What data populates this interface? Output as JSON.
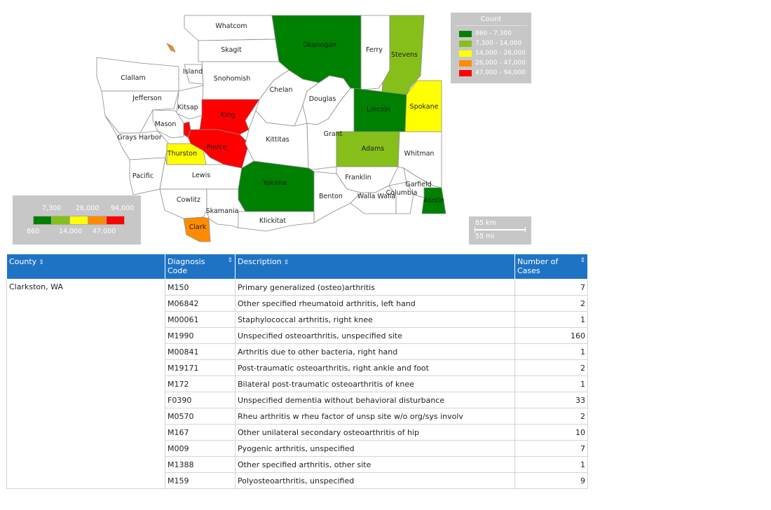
{
  "map": {
    "counties": [
      {
        "name": "Whatcom",
        "level": 0
      },
      {
        "name": "Skagit",
        "level": 0
      },
      {
        "name": "Okanogan",
        "level": 1
      },
      {
        "name": "Ferry",
        "level": 0
      },
      {
        "name": "Stevens",
        "level": 2
      },
      {
        "name": "Clallam",
        "level": 0
      },
      {
        "name": "Island",
        "level": 0
      },
      {
        "name": "Snohomish",
        "level": 0
      },
      {
        "name": "Chelan",
        "level": 0
      },
      {
        "name": "Douglas",
        "level": 0
      },
      {
        "name": "Lincoln",
        "level": 1
      },
      {
        "name": "Spokane",
        "level": 3
      },
      {
        "name": "Jefferson",
        "level": 0
      },
      {
        "name": "Kitsap",
        "level": 0
      },
      {
        "name": "King",
        "level": 5
      },
      {
        "name": "Mason",
        "level": 0
      },
      {
        "name": "Grays Harbor",
        "level": 0
      },
      {
        "name": "Pierce",
        "level": 5
      },
      {
        "name": "Thurston",
        "level": 3
      },
      {
        "name": "Kittitas",
        "level": 0
      },
      {
        "name": "Grant",
        "level": 0
      },
      {
        "name": "Adams",
        "level": 2
      },
      {
        "name": "Whitman",
        "level": 0
      },
      {
        "name": "Pacific",
        "level": 0
      },
      {
        "name": "Lewis",
        "level": 0
      },
      {
        "name": "Yakima",
        "level": 1
      },
      {
        "name": "Franklin",
        "level": 0
      },
      {
        "name": "Garfield",
        "level": 0
      },
      {
        "name": "Benton",
        "level": 0
      },
      {
        "name": "Walla Walla",
        "level": 0
      },
      {
        "name": "Columbia",
        "level": 0
      },
      {
        "name": "Asotin",
        "level": 1
      },
      {
        "name": "Cowlitz",
        "level": 0
      },
      {
        "name": "Skamania",
        "level": 0
      },
      {
        "name": "Klickitat",
        "level": 0
      },
      {
        "name": "Clark",
        "level": 4
      },
      {
        "name": "San Juan",
        "level": 4
      }
    ],
    "colors": [
      "#ffffff",
      "#008000",
      "#86bf19",
      "#ffff00",
      "#ff8c00",
      "#ff0000"
    ]
  },
  "legend": {
    "title": "Count",
    "items": [
      {
        "label": "860 - 7,300",
        "color": "#008000"
      },
      {
        "label": "7,300 - 14,000",
        "color": "#86bf19"
      },
      {
        "label": "14,000 - 26,000",
        "color": "#ffff00"
      },
      {
        "label": "26,000 - 47,000",
        "color": "#ff8c00"
      },
      {
        "label": "47,000 - 94,000",
        "color": "#ff0000"
      }
    ]
  },
  "scale_legend": {
    "top_labels": [
      "7,300",
      "26,000",
      "94,000"
    ],
    "bottom_labels": [
      "860",
      "14,000",
      "47,000"
    ],
    "colors": [
      "#008000",
      "#86bf19",
      "#ffff00",
      "#ff8c00",
      "#ff0000"
    ]
  },
  "distance_scale": {
    "km": "85 km",
    "mi": "55 mi"
  },
  "table": {
    "headers": {
      "county": "County",
      "code": "Diagnosis Code",
      "description": "Description",
      "cases": "Number of Cases"
    },
    "county": "Clarkston, WA",
    "rows": [
      {
        "code": "M150",
        "description": "Primary generalized (osteo)arthritis",
        "cases": "7"
      },
      {
        "code": "M06842",
        "description": "Other specified rheumatoid arthritis, left hand",
        "cases": "2"
      },
      {
        "code": "M00061",
        "description": "Staphylococcal arthritis, right knee",
        "cases": "1"
      },
      {
        "code": "M1990",
        "description": "Unspecified osteoarthritis, unspecified site",
        "cases": "160"
      },
      {
        "code": "M00841",
        "description": "Arthritis due to other bacteria, right hand",
        "cases": "1"
      },
      {
        "code": "M19171",
        "description": "Post-traumatic osteoarthritis, right ankle and foot",
        "cases": "2"
      },
      {
        "code": "M172",
        "description": "Bilateral post-traumatic osteoarthritis of knee",
        "cases": "1"
      },
      {
        "code": "F0390",
        "description": "Unspecified dementia without behavioral disturbance",
        "cases": "33"
      },
      {
        "code": "M0570",
        "description": "Rheu arthritis w rheu factor of unsp site w/o org/sys involv",
        "cases": "2"
      },
      {
        "code": "M167",
        "description": "Other unilateral secondary osteoarthritis of hip",
        "cases": "10"
      },
      {
        "code": "M009",
        "description": "Pyogenic arthritis, unspecified",
        "cases": "7"
      },
      {
        "code": "M1388",
        "description": "Other specified arthritis, other site",
        "cases": "1"
      },
      {
        "code": "M159",
        "description": "Polyosteoarthritis, unspecified",
        "cases": "9"
      }
    ]
  }
}
